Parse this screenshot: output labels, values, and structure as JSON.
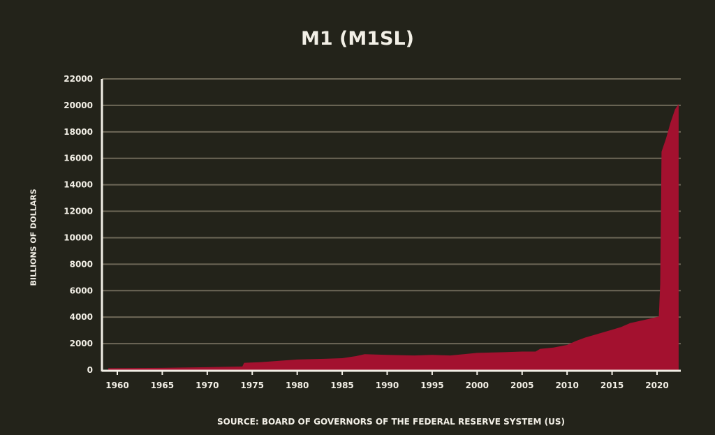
{
  "chart_data": {
    "type": "area",
    "title": "M1 (M1SL)",
    "xlabel": "",
    "ylabel": "BILLIONS OF DOLLARS",
    "source": "SOURCE: BOARD OF GOVERNORS OF THE FEDERAL RESERVE SYSTEM (US)",
    "xlim": [
      1958,
      2022.5
    ],
    "ylim": [
      0,
      22000
    ],
    "xticks": [
      1960,
      1965,
      1970,
      1975,
      1980,
      1985,
      1990,
      1995,
      2000,
      2005,
      2010,
      2015,
      2020
    ],
    "yticks": [
      0,
      2000,
      4000,
      6000,
      8000,
      10000,
      12000,
      14000,
      16000,
      18000,
      20000,
      22000
    ],
    "grid": true,
    "colors": {
      "fill": "#a3112f",
      "background": "#23231a",
      "grid": "#6e6858",
      "axis": "#f2efe6"
    },
    "series": [
      {
        "name": "M1SL",
        "x": [
          1959,
          1965,
          1970,
          1973.9,
          1974.1,
          1976,
          1978,
          1980,
          1983,
          1985,
          1986.5,
          1987.5,
          1990,
          1993,
          1995,
          1997,
          2000,
          2003,
          2005,
          2006.5,
          2007,
          2008.5,
          2010,
          2011,
          2012,
          2013,
          2014,
          2015,
          2016,
          2017,
          2018,
          2019,
          2020.2,
          2020.35,
          2020.5,
          2021,
          2021.5,
          2022,
          2022.4
        ],
        "y": [
          140,
          165,
          215,
          270,
          550,
          600,
          700,
          800,
          850,
          900,
          1050,
          1200,
          1150,
          1100,
          1150,
          1100,
          1300,
          1350,
          1400,
          1400,
          1600,
          1700,
          1900,
          2200,
          2450,
          2650,
          2850,
          3050,
          3250,
          3550,
          3700,
          3850,
          4050,
          6500,
          16500,
          17500,
          18700,
          19700,
          20100
        ]
      }
    ]
  }
}
